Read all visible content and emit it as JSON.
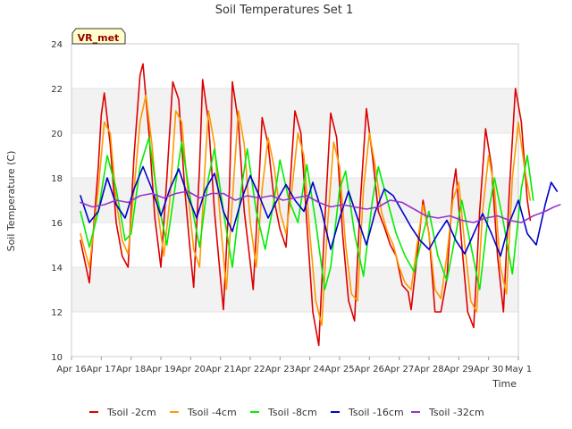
{
  "chart_data": {
    "type": "line",
    "title": "Soil Temperatures Set 1",
    "xlabel": "Time",
    "ylabel": "Soil Temperature (C)",
    "station_label": "VR_met",
    "x_ticks": [
      "Apr 16",
      "Apr 17",
      "Apr 18",
      "Apr 19",
      "Apr 20",
      "Apr 21",
      "Apr 22",
      "Apr 23",
      "Apr 24",
      "Apr 25",
      "Apr 26",
      "Apr 27",
      "Apr 28",
      "Apr 29",
      "Apr 30",
      "May 1"
    ],
    "x_range_days": [
      0,
      15
    ],
    "ylim": [
      10,
      24
    ],
    "y_ticks": [
      10,
      12,
      14,
      16,
      18,
      20,
      22,
      24
    ],
    "grid": "horizontal bands",
    "legend_position": "bottom",
    "x_unit": "day offset from Apr 16",
    "series": [
      {
        "name": "Tsoil -2cm",
        "color": "#dd0000",
        "points": [
          [
            0.3,
            15.2
          ],
          [
            0.6,
            13.3
          ],
          [
            0.9,
            18.5
          ],
          [
            1.0,
            20.8
          ],
          [
            1.1,
            21.8
          ],
          [
            1.3,
            19.5
          ],
          [
            1.5,
            16.0
          ],
          [
            1.7,
            14.5
          ],
          [
            1.9,
            14.0
          ],
          [
            2.1,
            19.0
          ],
          [
            2.3,
            22.6
          ],
          [
            2.4,
            23.1
          ],
          [
            2.6,
            20.0
          ],
          [
            2.8,
            16.2
          ],
          [
            3.0,
            14.0
          ],
          [
            3.2,
            18.0
          ],
          [
            3.4,
            22.3
          ],
          [
            3.6,
            21.5
          ],
          [
            3.8,
            17.5
          ],
          [
            4.0,
            14.5
          ],
          [
            4.1,
            13.1
          ],
          [
            4.3,
            18.5
          ],
          [
            4.4,
            22.4
          ],
          [
            4.6,
            20.5
          ],
          [
            4.8,
            16.5
          ],
          [
            5.0,
            13.5
          ],
          [
            5.1,
            12.1
          ],
          [
            5.3,
            17.5
          ],
          [
            5.4,
            22.3
          ],
          [
            5.6,
            20.5
          ],
          [
            5.8,
            16.5
          ],
          [
            6.0,
            14.2
          ],
          [
            6.1,
            13.0
          ],
          [
            6.3,
            18.0
          ],
          [
            6.4,
            20.7
          ],
          [
            6.6,
            19.5
          ],
          [
            6.8,
            17.0
          ],
          [
            7.0,
            15.7
          ],
          [
            7.2,
            14.9
          ],
          [
            7.4,
            19.0
          ],
          [
            7.5,
            21.0
          ],
          [
            7.7,
            20.0
          ],
          [
            7.9,
            16.0
          ],
          [
            8.1,
            12.0
          ],
          [
            8.3,
            10.5
          ],
          [
            8.5,
            16.0
          ],
          [
            8.7,
            20.9
          ],
          [
            8.9,
            19.8
          ],
          [
            9.1,
            15.5
          ],
          [
            9.3,
            12.5
          ],
          [
            9.5,
            11.6
          ],
          [
            9.7,
            17.0
          ],
          [
            9.9,
            21.1
          ],
          [
            10.1,
            19.0
          ],
          [
            10.3,
            16.5
          ],
          [
            10.5,
            15.8
          ],
          [
            10.7,
            15.0
          ],
          [
            10.9,
            14.5
          ],
          [
            11.1,
            13.2
          ],
          [
            11.3,
            12.9
          ],
          [
            11.4,
            12.1
          ],
          [
            11.6,
            14.5
          ],
          [
            11.8,
            17.0
          ],
          [
            12.0,
            15.5
          ],
          [
            12.2,
            12.0
          ],
          [
            12.4,
            12.0
          ],
          [
            12.6,
            13.5
          ],
          [
            12.8,
            17.5
          ],
          [
            12.9,
            18.4
          ],
          [
            13.1,
            15.0
          ],
          [
            13.3,
            12.0
          ],
          [
            13.5,
            11.3
          ],
          [
            13.7,
            16.5
          ],
          [
            13.9,
            20.2
          ],
          [
            14.1,
            18.5
          ],
          [
            14.3,
            14.5
          ],
          [
            14.5,
            12.0
          ],
          [
            14.7,
            17.5
          ],
          [
            14.9,
            22.0
          ],
          [
            15.1,
            20.5
          ],
          [
            15.3,
            17.0
          ],
          [
            15.4,
            16.1
          ]
        ]
      },
      {
        "name": "Tsoil -4cm",
        "color": "#ff9900",
        "points": [
          [
            0.3,
            15.5
          ],
          [
            0.6,
            14.0
          ],
          [
            0.9,
            17.5
          ],
          [
            1.1,
            20.5
          ],
          [
            1.3,
            20.0
          ],
          [
            1.5,
            17.0
          ],
          [
            1.7,
            15.2
          ],
          [
            1.9,
            14.6
          ],
          [
            2.1,
            17.5
          ],
          [
            2.3,
            20.5
          ],
          [
            2.5,
            21.7
          ],
          [
            2.7,
            19.5
          ],
          [
            2.9,
            16.5
          ],
          [
            3.1,
            14.5
          ],
          [
            3.3,
            17.0
          ],
          [
            3.5,
            21.0
          ],
          [
            3.7,
            20.5
          ],
          [
            3.9,
            17.5
          ],
          [
            4.1,
            14.8
          ],
          [
            4.3,
            14.0
          ],
          [
            4.5,
            19.0
          ],
          [
            4.6,
            21.0
          ],
          [
            4.8,
            19.5
          ],
          [
            5.0,
            16.0
          ],
          [
            5.2,
            13.0
          ],
          [
            5.4,
            17.0
          ],
          [
            5.6,
            21.0
          ],
          [
            5.8,
            19.5
          ],
          [
            6.0,
            16.0
          ],
          [
            6.2,
            14.0
          ],
          [
            6.4,
            17.5
          ],
          [
            6.6,
            19.8
          ],
          [
            6.8,
            18.5
          ],
          [
            7.0,
            16.5
          ],
          [
            7.2,
            15.5
          ],
          [
            7.4,
            17.5
          ],
          [
            7.6,
            20.0
          ],
          [
            7.8,
            19.0
          ],
          [
            8.0,
            15.5
          ],
          [
            8.2,
            12.5
          ],
          [
            8.4,
            11.4
          ],
          [
            8.6,
            16.0
          ],
          [
            8.8,
            19.6
          ],
          [
            9.0,
            18.5
          ],
          [
            9.2,
            15.0
          ],
          [
            9.4,
            12.8
          ],
          [
            9.6,
            12.5
          ],
          [
            9.8,
            17.5
          ],
          [
            10.0,
            20.0
          ],
          [
            10.2,
            18.5
          ],
          [
            10.4,
            16.5
          ],
          [
            10.6,
            15.6
          ],
          [
            10.8,
            15.0
          ],
          [
            11.0,
            14.0
          ],
          [
            11.2,
            13.3
          ],
          [
            11.4,
            13.0
          ],
          [
            11.6,
            15.0
          ],
          [
            11.8,
            16.8
          ],
          [
            12.0,
            15.5
          ],
          [
            12.2,
            13.0
          ],
          [
            12.4,
            12.6
          ],
          [
            12.6,
            14.5
          ],
          [
            12.8,
            17.0
          ],
          [
            13.0,
            17.8
          ],
          [
            13.2,
            15.0
          ],
          [
            13.4,
            12.5
          ],
          [
            13.6,
            12.0
          ],
          [
            13.8,
            16.5
          ],
          [
            14.0,
            19.0
          ],
          [
            14.2,
            17.5
          ],
          [
            14.4,
            14.0
          ],
          [
            14.6,
            12.8
          ],
          [
            14.8,
            18.0
          ],
          [
            15.0,
            20.5
          ],
          [
            15.2,
            18.5
          ],
          [
            15.4,
            17.0
          ]
        ]
      },
      {
        "name": "Tsoil -8cm",
        "color": "#00ee00",
        "points": [
          [
            0.3,
            16.5
          ],
          [
            0.6,
            14.9
          ],
          [
            0.9,
            16.5
          ],
          [
            1.2,
            19.0
          ],
          [
            1.5,
            17.5
          ],
          [
            1.8,
            15.2
          ],
          [
            2.0,
            15.5
          ],
          [
            2.3,
            18.5
          ],
          [
            2.6,
            19.8
          ],
          [
            2.9,
            17.0
          ],
          [
            3.2,
            15.0
          ],
          [
            3.5,
            17.8
          ],
          [
            3.7,
            19.6
          ],
          [
            4.0,
            17.0
          ],
          [
            4.3,
            14.9
          ],
          [
            4.6,
            18.0
          ],
          [
            4.8,
            19.3
          ],
          [
            5.1,
            16.5
          ],
          [
            5.4,
            14.0
          ],
          [
            5.7,
            17.5
          ],
          [
            5.9,
            19.3
          ],
          [
            6.2,
            16.5
          ],
          [
            6.5,
            14.8
          ],
          [
            6.8,
            17.0
          ],
          [
            7.0,
            18.8
          ],
          [
            7.3,
            17.0
          ],
          [
            7.6,
            16.0
          ],
          [
            7.9,
            18.6
          ],
          [
            8.2,
            16.0
          ],
          [
            8.5,
            13.0
          ],
          [
            8.7,
            14.0
          ],
          [
            9.0,
            17.5
          ],
          [
            9.2,
            18.3
          ],
          [
            9.5,
            15.5
          ],
          [
            9.8,
            13.6
          ],
          [
            10.1,
            17.0
          ],
          [
            10.3,
            18.5
          ],
          [
            10.6,
            17.0
          ],
          [
            10.9,
            15.5
          ],
          [
            11.2,
            14.5
          ],
          [
            11.5,
            13.8
          ],
          [
            11.8,
            15.5
          ],
          [
            12.0,
            16.5
          ],
          [
            12.3,
            14.5
          ],
          [
            12.6,
            13.4
          ],
          [
            12.9,
            15.5
          ],
          [
            13.1,
            17.0
          ],
          [
            13.4,
            15.0
          ],
          [
            13.7,
            13.0
          ],
          [
            14.0,
            16.5
          ],
          [
            14.2,
            18.0
          ],
          [
            14.5,
            16.0
          ],
          [
            14.8,
            13.7
          ],
          [
            15.1,
            17.5
          ],
          [
            15.3,
            19.0
          ],
          [
            15.5,
            17.0
          ]
        ]
      },
      {
        "name": "Tsoil -16cm",
        "color": "#0000cc",
        "points": [
          [
            0.3,
            17.2
          ],
          [
            0.6,
            16.0
          ],
          [
            0.9,
            16.5
          ],
          [
            1.2,
            18.0
          ],
          [
            1.5,
            16.8
          ],
          [
            1.8,
            16.2
          ],
          [
            2.1,
            17.5
          ],
          [
            2.4,
            18.5
          ],
          [
            2.7,
            17.5
          ],
          [
            3.0,
            16.3
          ],
          [
            3.3,
            17.5
          ],
          [
            3.6,
            18.4
          ],
          [
            3.9,
            17.2
          ],
          [
            4.2,
            16.2
          ],
          [
            4.5,
            17.5
          ],
          [
            4.8,
            18.2
          ],
          [
            5.1,
            16.5
          ],
          [
            5.4,
            15.6
          ],
          [
            5.7,
            17.0
          ],
          [
            6.0,
            18.1
          ],
          [
            6.3,
            17.2
          ],
          [
            6.6,
            16.2
          ],
          [
            6.9,
            17.0
          ],
          [
            7.2,
            17.7
          ],
          [
            7.5,
            17.0
          ],
          [
            7.8,
            16.5
          ],
          [
            8.1,
            17.8
          ],
          [
            8.4,
            16.5
          ],
          [
            8.7,
            14.8
          ],
          [
            9.0,
            16.2
          ],
          [
            9.3,
            17.4
          ],
          [
            9.6,
            16.2
          ],
          [
            9.9,
            15.0
          ],
          [
            10.2,
            16.5
          ],
          [
            10.5,
            17.5
          ],
          [
            10.8,
            17.2
          ],
          [
            11.1,
            16.5
          ],
          [
            11.4,
            15.8
          ],
          [
            11.7,
            15.2
          ],
          [
            12.0,
            14.8
          ],
          [
            12.3,
            15.5
          ],
          [
            12.6,
            16.1
          ],
          [
            12.9,
            15.2
          ],
          [
            13.2,
            14.6
          ],
          [
            13.5,
            15.5
          ],
          [
            13.8,
            16.4
          ],
          [
            14.1,
            15.5
          ],
          [
            14.4,
            14.5
          ],
          [
            14.7,
            16.0
          ],
          [
            15.0,
            17.0
          ],
          [
            15.3,
            15.5
          ],
          [
            15.6,
            15.0
          ],
          [
            15.9,
            16.8
          ],
          [
            16.1,
            17.8
          ],
          [
            16.3,
            17.4
          ]
        ]
      },
      {
        "name": "Tsoil -32cm",
        "color": "#9933cc",
        "points": [
          [
            0.3,
            16.9
          ],
          [
            0.7,
            16.7
          ],
          [
            1.1,
            16.8
          ],
          [
            1.5,
            17.0
          ],
          [
            1.9,
            16.9
          ],
          [
            2.3,
            17.2
          ],
          [
            2.7,
            17.3
          ],
          [
            3.1,
            17.1
          ],
          [
            3.5,
            17.3
          ],
          [
            3.9,
            17.4
          ],
          [
            4.3,
            17.1
          ],
          [
            4.7,
            17.3
          ],
          [
            5.1,
            17.3
          ],
          [
            5.5,
            17.0
          ],
          [
            5.9,
            17.2
          ],
          [
            6.3,
            17.1
          ],
          [
            6.7,
            17.2
          ],
          [
            7.1,
            17.0
          ],
          [
            7.5,
            17.1
          ],
          [
            7.9,
            17.2
          ],
          [
            8.3,
            16.9
          ],
          [
            8.7,
            16.7
          ],
          [
            9.1,
            16.8
          ],
          [
            9.5,
            16.7
          ],
          [
            9.9,
            16.6
          ],
          [
            10.3,
            16.7
          ],
          [
            10.7,
            17.0
          ],
          [
            11.1,
            16.9
          ],
          [
            11.5,
            16.6
          ],
          [
            11.9,
            16.3
          ],
          [
            12.3,
            16.2
          ],
          [
            12.7,
            16.3
          ],
          [
            13.1,
            16.1
          ],
          [
            13.5,
            16.0
          ],
          [
            13.9,
            16.2
          ],
          [
            14.3,
            16.3
          ],
          [
            14.7,
            16.1
          ],
          [
            15.1,
            16.0
          ],
          [
            15.5,
            16.3
          ],
          [
            15.9,
            16.5
          ],
          [
            16.2,
            16.7
          ],
          [
            16.4,
            16.8
          ]
        ]
      }
    ]
  }
}
